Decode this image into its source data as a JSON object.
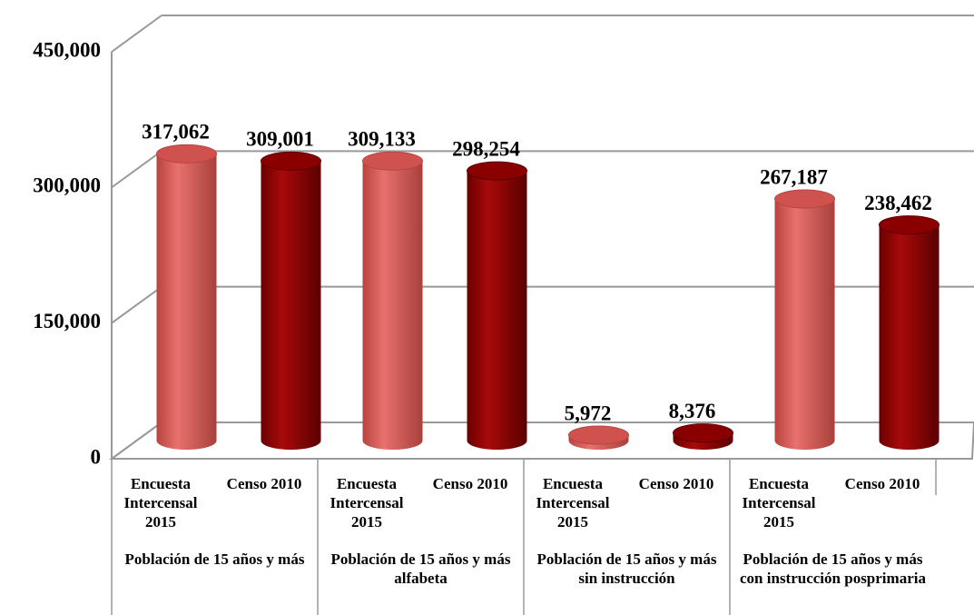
{
  "chart_data": {
    "type": "bar3d",
    "categories": [
      "Población de 15 años y más",
      "Población de 15 años y más alfabeta",
      "Población de 15 años y más sin instrucción",
      "Población de 15 años y más con instrucción posprimaria"
    ],
    "series": [
      {
        "name": "Encuesta Intercensal 2015",
        "color": "#d0524e",
        "values": [
          317062,
          309133,
          5972,
          267187
        ],
        "value_labels": [
          "317,062",
          "309,133",
          "5,972",
          "267,187"
        ]
      },
      {
        "name": "Censo 2010",
        "color": "#8a0000",
        "values": [
          309001,
          298254,
          8376,
          238462
        ],
        "value_labels": [
          "309,001",
          "298,254",
          "8,376",
          "238,462"
        ]
      }
    ],
    "ylim": [
      0,
      450000
    ],
    "yticks": [
      0,
      {
        "value": 150000,
        "label": "150,000"
      },
      {
        "value": 300000,
        "label": "300,000"
      },
      {
        "value": 450000,
        "label": "450,000"
      }
    ],
    "grid": true
  }
}
